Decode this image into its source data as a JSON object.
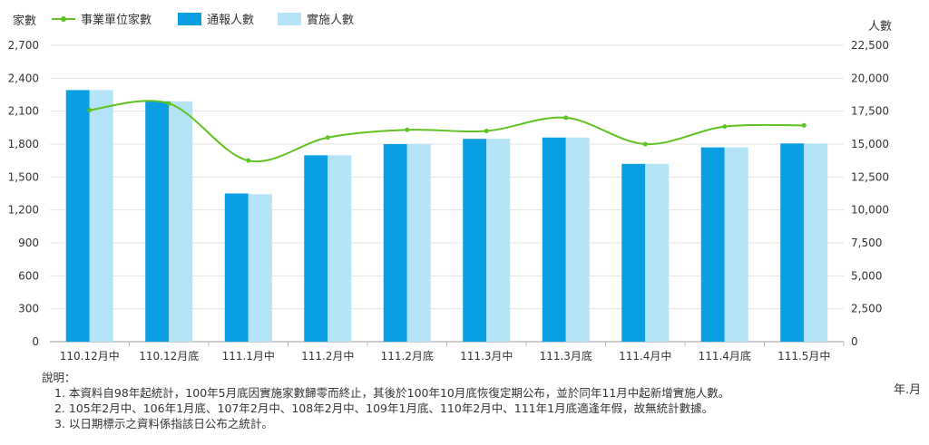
{
  "chart_data": {
    "type": "bar",
    "categories": [
      "110.12月中",
      "110.12月底",
      "111.1月中",
      "111.2月中",
      "111.2月底",
      "111.3月中",
      "111.3月底",
      "111.4月中",
      "111.4月底",
      "111.5月中"
    ],
    "y_left_label": "家數",
    "y_right_label": "人數",
    "x_label": "年.月",
    "y_left_range": [
      0,
      2700
    ],
    "y_left_ticks": [
      0,
      300,
      600,
      900,
      1200,
      1500,
      1800,
      2100,
      2400,
      2700
    ],
    "y_left_tick_labels": [
      "0",
      "300",
      "600",
      "900",
      "1,200",
      "1,500",
      "1,800",
      "2,100",
      "2,400",
      "2,700"
    ],
    "y_right_range": [
      0,
      22500
    ],
    "y_right_ticks": [
      0,
      2500,
      5000,
      7500,
      10000,
      12500,
      15000,
      17500,
      20000,
      22500
    ],
    "y_right_tick_labels": [
      "0",
      "2,500",
      "5,000",
      "7,500",
      "10,000",
      "12,500",
      "15,000",
      "17,500",
      "20,000",
      "22,500"
    ],
    "grid": true,
    "legend_position": "top",
    "series": [
      {
        "name": "事業單位家數",
        "kind": "line",
        "axis": "left",
        "color": "#5fc21f",
        "values": [
          2110,
          2170,
          1650,
          1860,
          1930,
          1920,
          2040,
          1800,
          1960,
          1970
        ]
      },
      {
        "name": "通報人數",
        "kind": "bar",
        "axis": "right",
        "color": "#0a9ee3",
        "values": [
          19100,
          18250,
          11250,
          14150,
          15000,
          15400,
          15500,
          13500,
          14750,
          15050
        ]
      },
      {
        "name": "實施人數",
        "kind": "bar",
        "axis": "right",
        "color": "#b5e3f8",
        "values": [
          19100,
          18250,
          11200,
          14150,
          15000,
          15400,
          15500,
          13500,
          14750,
          15050
        ]
      }
    ]
  },
  "notes": {
    "title": "說明：",
    "lines": [
      "1. 本資料自98年起統計，100年5月底因實施家數歸零而終止，其後於100年10月底恢復定期公布，並於同年11月中起新增實施人數。",
      "2. 105年2月中、106年1月底、107年2月中、108年2月中、109年1月底、110年2月中、111年1月底適逢年假，故無統計數據。",
      "3. 以日期標示之資料係指該日公布之統計。"
    ]
  }
}
